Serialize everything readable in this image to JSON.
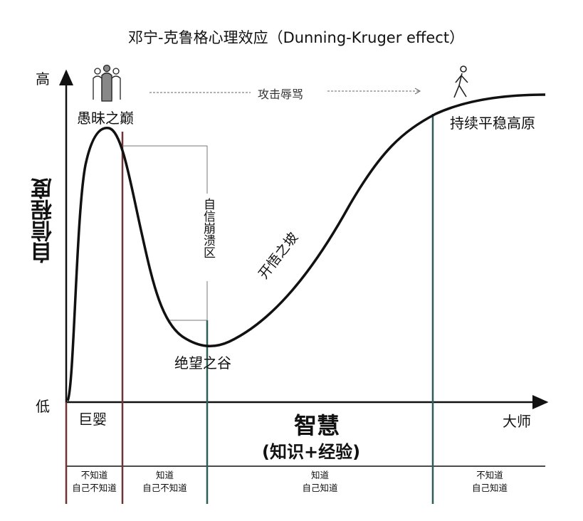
{
  "title": "邓宁-克鲁格心理效应（Dunning-Kruger effect）",
  "y_axis": {
    "label": "自信程度",
    "high": "高",
    "low": "低"
  },
  "x_axis": {
    "label": "智慧",
    "sublabel": "(知识+经验)",
    "start": "巨婴",
    "end": "大师"
  },
  "stages": {
    "peak": "愚昧之巅",
    "collapse": "自信崩溃区",
    "valley": "绝望之谷",
    "slope": "开悟之坡",
    "plateau": "持续平稳高原"
  },
  "attack_label": "攻击辱骂",
  "icons": {
    "group": "people-group-icon",
    "walker": "walking-person-icon"
  },
  "zones": [
    {
      "line1": "不知道",
      "line2": "自己不知道"
    },
    {
      "line1": "知道",
      "line2": "自己不知道"
    },
    {
      "line1": "知道",
      "line2": "自己知道"
    },
    {
      "line1": "不知道",
      "line2": "自己知道"
    }
  ],
  "colors": {
    "curve": "#111111",
    "early_lines": "#6e3535",
    "late_lines": "#2f5d58"
  }
}
